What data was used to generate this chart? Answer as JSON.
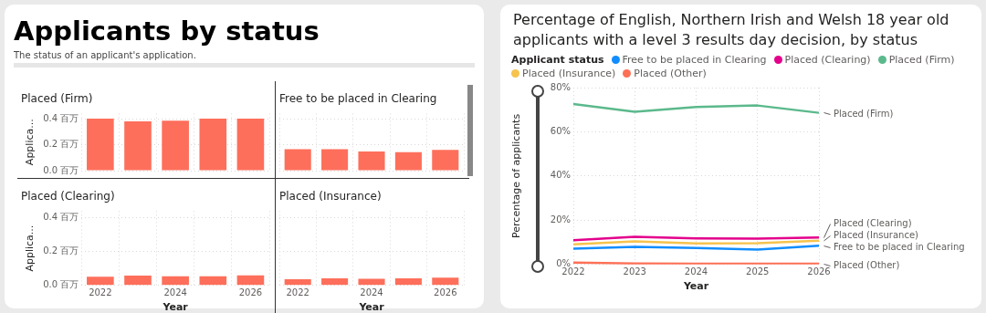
{
  "chart_data": [
    {
      "type": "other",
      "title": "Applicants by status",
      "subtitle": "The status of an applicant's application."
    },
    {
      "type": "bar",
      "title": "Placed (Firm)",
      "ylabel": "Applica...",
      "categories": [
        "2022",
        null,
        "2024",
        null,
        "2026"
      ],
      "values": [
        0.4,
        0.38,
        0.385,
        0.4,
        0.4
      ],
      "color": "#fd6f5b",
      "ylim": [
        0,
        0.44
      ],
      "yticks": [
        {
          "value": 0,
          "label": "0.0 百万"
        },
        {
          "value": 0.2,
          "label": "0.2 百万"
        },
        {
          "value": 0.4,
          "label": "0.4 百万"
        }
      ],
      "grid": true,
      "tick_labels": "y"
    },
    {
      "type": "bar",
      "title": "Free to be placed in Clearing",
      "categories": [
        "2022",
        null,
        "2024",
        null,
        "2026"
      ],
      "values": [
        0.165,
        0.165,
        0.147,
        0.142,
        0.16
      ],
      "color": "#fd6f5b",
      "ylim": [
        0,
        0.44
      ],
      "yticks": [
        {
          "value": 0,
          "label": null
        },
        {
          "value": 0.2,
          "label": null
        },
        {
          "value": 0.4,
          "label": null
        }
      ],
      "grid": true,
      "tick_labels": false
    },
    {
      "type": "bar",
      "title": "Placed (Clearing)",
      "xlabel": "Year",
      "ylabel": "Applica...",
      "categories": [
        "2022",
        null,
        "2024",
        null,
        "2026"
      ],
      "values": [
        0.051,
        0.058,
        0.055,
        0.055,
        0.06
      ],
      "color": "#fd6f5b",
      "ylim": [
        0,
        0.44
      ],
      "yticks": [
        {
          "value": 0,
          "label": "0.0 百万"
        },
        {
          "value": 0.2,
          "label": "0.2 百万"
        },
        {
          "value": 0.4,
          "label": "0.4 百万"
        }
      ],
      "grid": true
    },
    {
      "type": "bar",
      "title": "Placed (Insurance)",
      "xlabel": "Year",
      "categories": [
        "2022",
        null,
        "2024",
        null,
        "2026"
      ],
      "values": [
        0.037,
        0.042,
        0.039,
        0.042,
        0.046
      ],
      "color": "#fd6f5b",
      "ylim": [
        0,
        0.44
      ],
      "yticks": [
        {
          "value": 0,
          "label": null
        },
        {
          "value": 0.2,
          "label": null
        },
        {
          "value": 0.4,
          "label": null
        }
      ],
      "grid": true,
      "tick_labels": "x"
    },
    {
      "type": "line",
      "title": "Percentage of English, Northern Irish and Welsh 18 year old applicants with a level 3 results day decision, by status",
      "xlabel": "Year",
      "ylabel": "Percentage of applicants",
      "legend_title": "Applicant status",
      "legend": "top",
      "grid": true,
      "marker": "none",
      "categories": [
        "2022",
        "2023",
        "2024",
        "2025",
        "2026"
      ],
      "ylim": [
        0,
        80
      ],
      "yticks": [
        {
          "value": 0,
          "label": "0%"
        },
        {
          "value": 20,
          "label": "20%"
        },
        {
          "value": 40,
          "label": "40%"
        },
        {
          "value": 60,
          "label": "60%"
        },
        {
          "value": 80,
          "label": "80%"
        }
      ],
      "series": [
        {
          "name": "Free to be placed in Clearing",
          "color": "#118dff",
          "values": [
            7.1,
            8.0,
            7.4,
            6.7,
            8.5
          ]
        },
        {
          "name": "Placed (Clearing)",
          "color": "#e3008c",
          "values": [
            11.0,
            12.5,
            11.8,
            11.7,
            12.2
          ]
        },
        {
          "name": "Placed (Firm)",
          "color": "#5bb98c",
          "values": [
            72.6,
            69.1,
            71.2,
            71.9,
            68.6
          ]
        },
        {
          "name": "Placed (Insurance)",
          "color": "#f6c34d",
          "values": [
            9.1,
            10.4,
            9.5,
            9.6,
            10.8
          ]
        },
        {
          "name": "Placed (Other)",
          "color": "#fd7056",
          "values": [
            0.8,
            0.4,
            0.3,
            0.3,
            0.3
          ]
        }
      ]
    }
  ]
}
